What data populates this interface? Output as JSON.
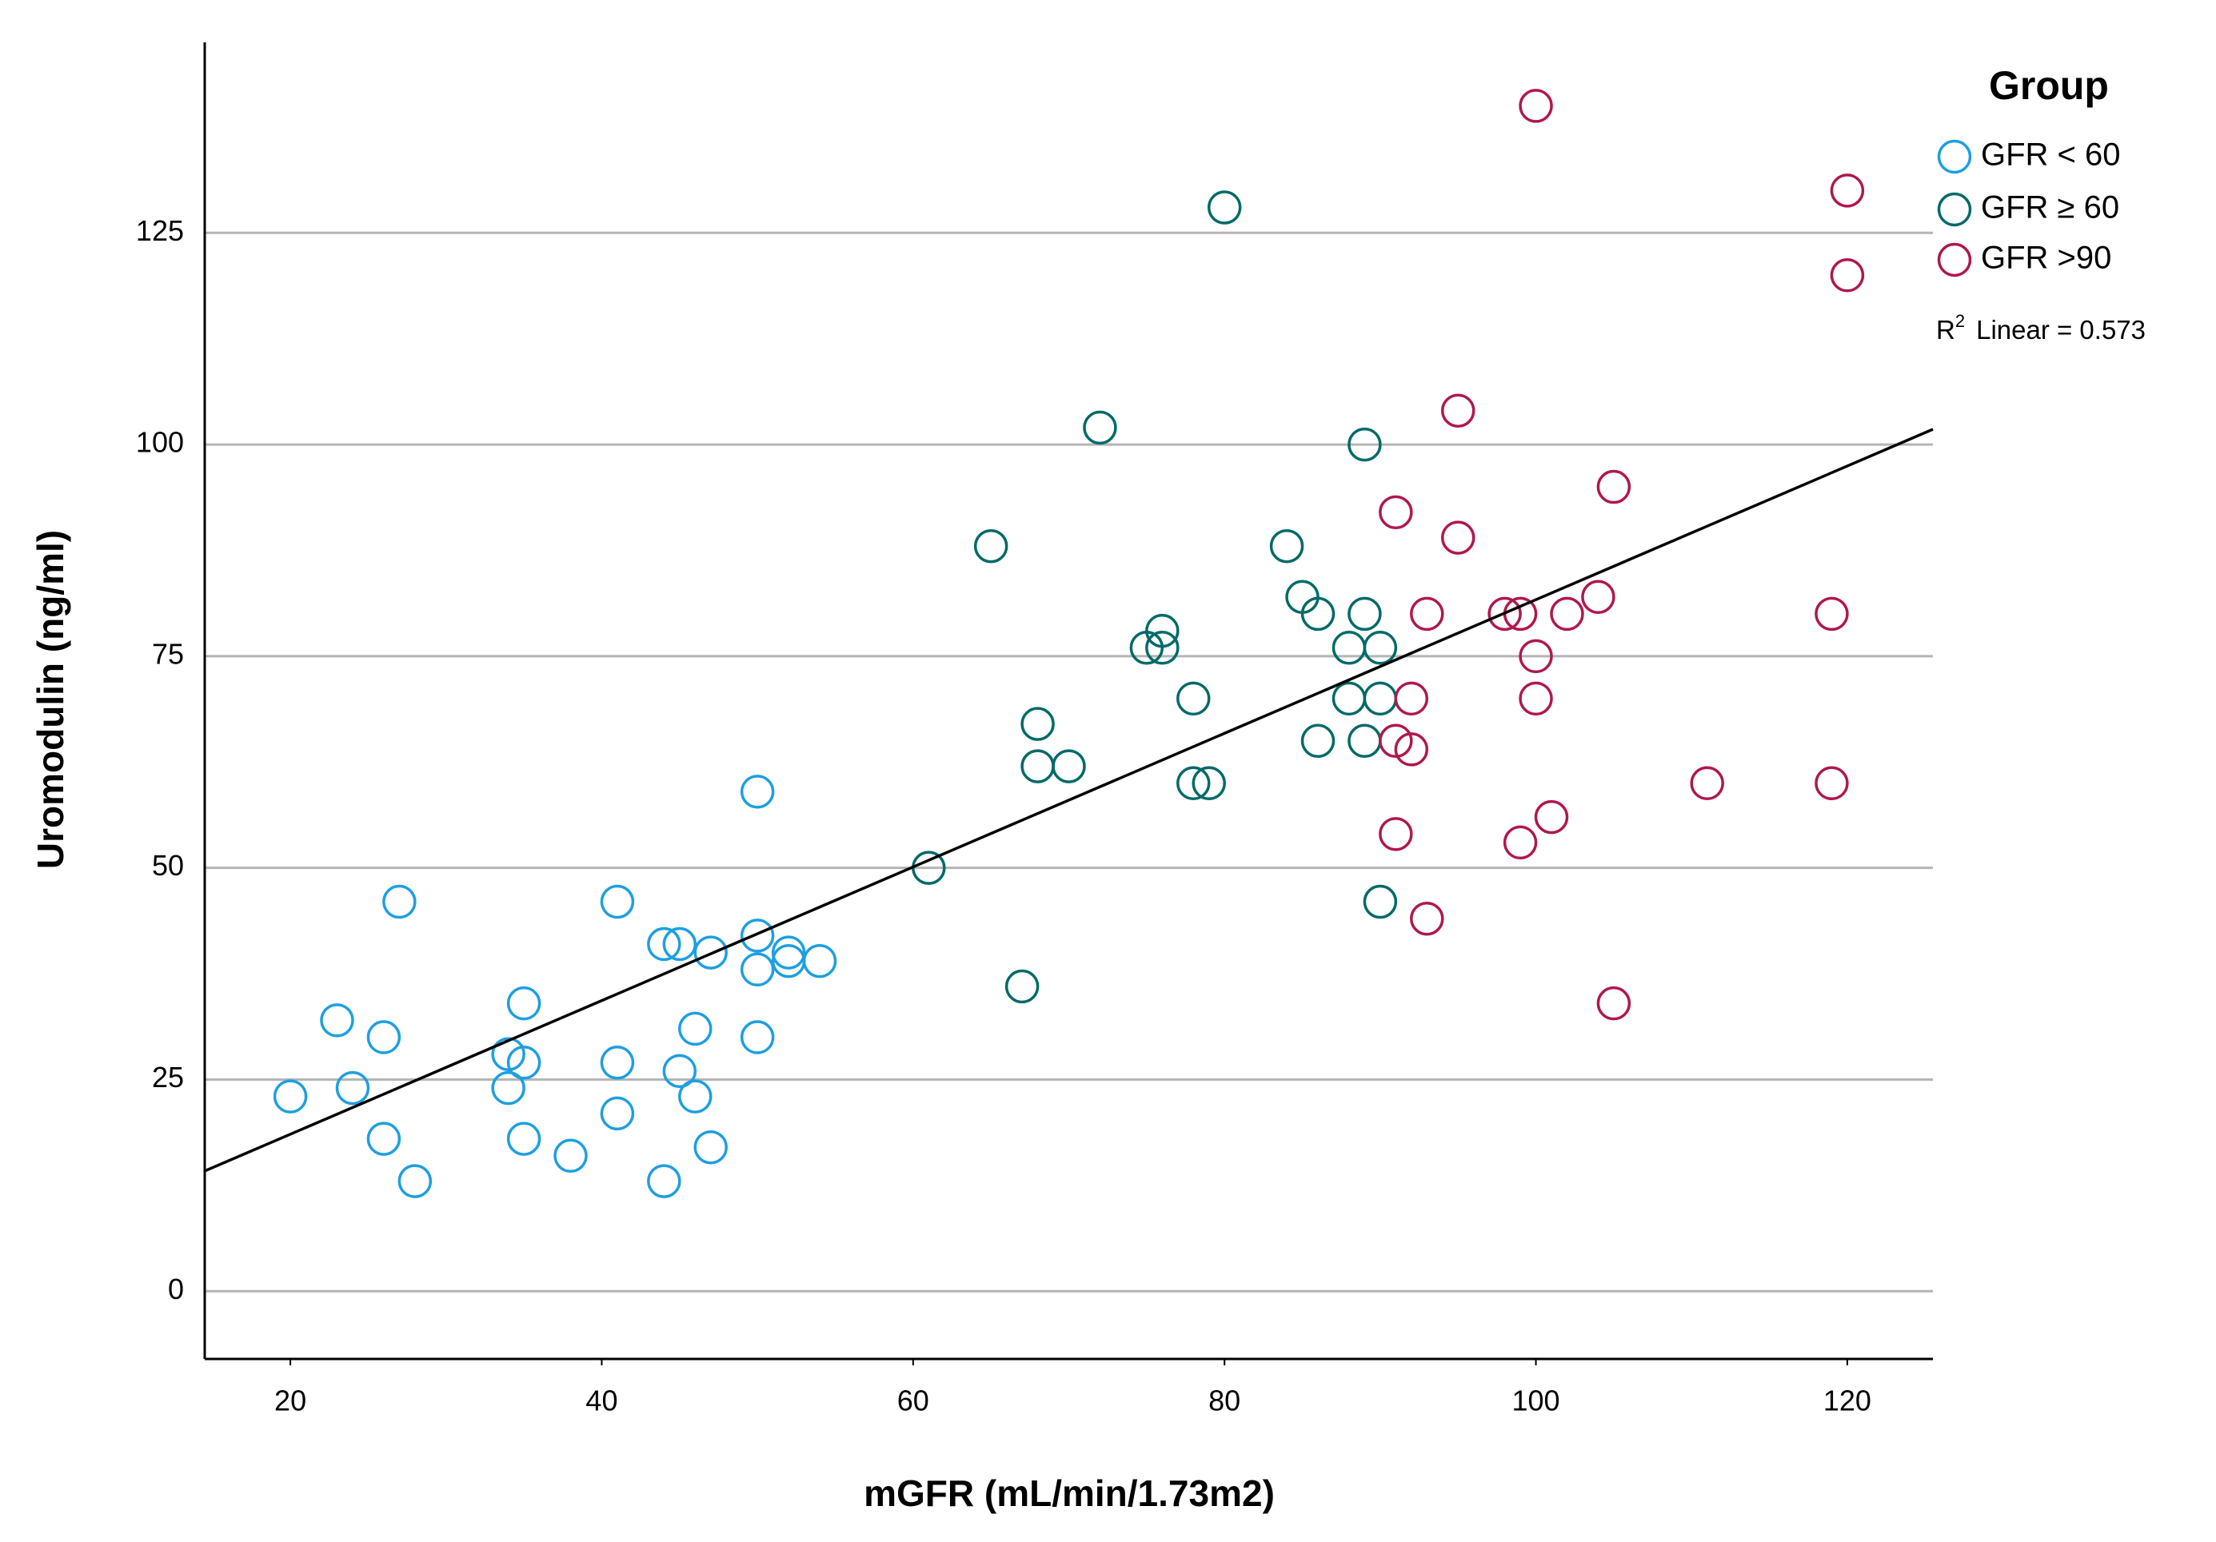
{
  "chart_data": {
    "type": "scatter",
    "x_label": "mGFR (mL/min/1.73m2)",
    "y_label": "Uromodulin (ng/ml)",
    "legend_title": "Group",
    "legend_position": "right",
    "grid": true,
    "xlim": [
      14.5,
      125.5
    ],
    "ylim": [
      -8,
      147.5
    ],
    "xticks": [
      20,
      40,
      60,
      80,
      100,
      120
    ],
    "yticks": [
      0,
      25,
      50,
      75,
      100,
      125
    ],
    "series": [
      {
        "name": "GFR < 60",
        "color": "#1e9fe0",
        "x": [
          20,
          23,
          24,
          26,
          26,
          27,
          28,
          34,
          34,
          35,
          35,
          35,
          38,
          41,
          41,
          41,
          44,
          44,
          45,
          45,
          46,
          46,
          47,
          47,
          50,
          50,
          50,
          50,
          52,
          52,
          54
        ],
        "y": [
          23,
          32,
          24,
          30,
          18,
          46,
          13,
          28,
          24,
          34,
          27,
          18,
          16,
          46,
          27,
          21,
          41,
          13,
          41,
          26,
          31,
          23,
          40,
          17,
          59,
          42,
          38,
          30,
          40,
          39,
          39
        ]
      },
      {
        "name": "GFR ≥ 60",
        "color": "#006a67",
        "x": [
          61,
          65,
          67,
          68,
          68,
          70,
          72,
          75,
          76,
          76,
          78,
          78,
          79,
          80,
          84,
          85,
          86,
          86,
          88,
          88,
          89,
          89,
          89,
          90,
          90,
          90
        ],
        "y": [
          50,
          88,
          36,
          67,
          62,
          62,
          102,
          76,
          78,
          76,
          70,
          60,
          60,
          128,
          88,
          82,
          80,
          65,
          76,
          70,
          100,
          80,
          65,
          76,
          70,
          46
        ]
      },
      {
        "name": "GFR >90",
        "color": "#b0174f",
        "x": [
          100,
          120,
          120,
          95,
          105,
          91,
          95,
          93,
          98,
          99,
          102,
          104,
          119,
          100,
          92,
          100,
          91,
          92,
          111,
          119,
          101,
          91,
          99,
          93,
          105
        ],
        "y": [
          140,
          130,
          120,
          104,
          95,
          92,
          89,
          80,
          80,
          80,
          80,
          82,
          80,
          75,
          70,
          70,
          65,
          64,
          60,
          60,
          56,
          54,
          53,
          44,
          34
        ]
      }
    ],
    "fit_line": {
      "color": "#000000",
      "x": [
        14.5,
        125.5
      ],
      "y": [
        14.2,
        101.8
      ]
    },
    "r2_symbol": "R",
    "r2_superscript": "2",
    "r2_label": "Linear = 0.573"
  }
}
